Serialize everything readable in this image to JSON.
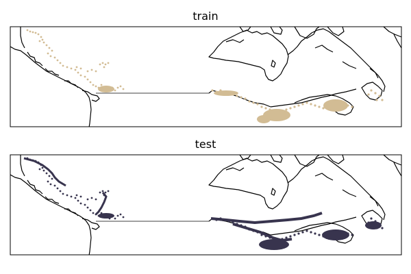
{
  "figure": {
    "panels": [
      {
        "id": "train",
        "title": "train",
        "point_color": "#d2bc94"
      },
      {
        "id": "test",
        "title": "test",
        "point_color": "#38344e"
      }
    ]
  },
  "colors": {
    "coastline": "#000000",
    "border": "#000000",
    "frame": "#000000",
    "background": "#ffffff"
  }
}
